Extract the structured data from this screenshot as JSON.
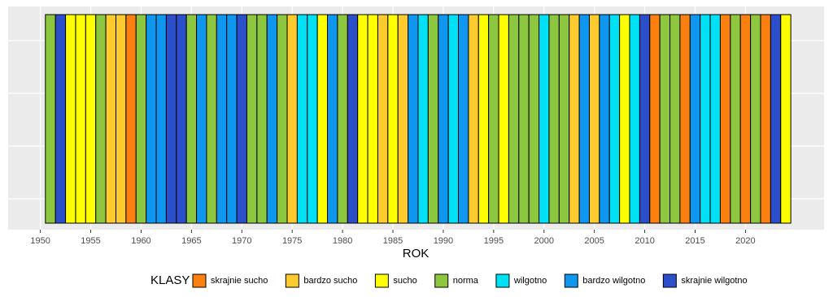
{
  "chart_data": {
    "type": "tile",
    "x_label": "ROK",
    "legend_title": "KLASY",
    "legend": [
      {
        "name": "skrajnie sucho",
        "color": "#fb8010"
      },
      {
        "name": "bardzo sucho",
        "color": "#fdcb2e"
      },
      {
        "name": "sucho",
        "color": "#ffff00"
      },
      {
        "name": "norma",
        "color": "#8dc63f"
      },
      {
        "name": "wilgotno",
        "color": "#00e1f5"
      },
      {
        "name": "bardzo wilgotno",
        "color": "#0f96ef"
      },
      {
        "name": "skrajnie wilgotno",
        "color": "#2b4fca"
      }
    ],
    "x": [
      1951,
      1952,
      1953,
      1954,
      1955,
      1956,
      1957,
      1958,
      1959,
      1960,
      1961,
      1962,
      1963,
      1964,
      1965,
      1966,
      1967,
      1968,
      1969,
      1970,
      1971,
      1972,
      1973,
      1974,
      1975,
      1976,
      1977,
      1978,
      1979,
      1980,
      1981,
      1982,
      1983,
      1984,
      1985,
      1986,
      1987,
      1988,
      1989,
      1990,
      1991,
      1992,
      1993,
      1994,
      1995,
      1996,
      1997,
      1998,
      1999,
      2000,
      2001,
      2002,
      2003,
      2004,
      2005,
      2006,
      2007,
      2008,
      2009,
      2010,
      2011,
      2012,
      2013,
      2014,
      2015,
      2016,
      2017,
      2018,
      2019,
      2020,
      2021,
      2022,
      2023,
      2024
    ],
    "classes": [
      "norma",
      "skrajnie wilgotno",
      "sucho",
      "sucho",
      "sucho",
      "norma",
      "bardzo sucho",
      "bardzo sucho",
      "skrajnie sucho",
      "norma",
      "bardzo wilgotno",
      "bardzo wilgotno",
      "skrajnie wilgotno",
      "skrajnie wilgotno",
      "norma",
      "bardzo wilgotno",
      "norma",
      "bardzo wilgotno",
      "bardzo wilgotno",
      "skrajnie wilgotno",
      "norma",
      "norma",
      "bardzo wilgotno",
      "norma",
      "bardzo sucho",
      "wilgotno",
      "wilgotno",
      "sucho",
      "bardzo wilgotno",
      "norma",
      "skrajnie wilgotno",
      "sucho",
      "sucho",
      "bardzo sucho",
      "sucho",
      "bardzo sucho",
      "bardzo wilgotno",
      "wilgotno",
      "norma",
      "bardzo wilgotno",
      "wilgotno",
      "bardzo wilgotno",
      "bardzo sucho",
      "sucho",
      "norma",
      "sucho",
      "norma",
      "norma",
      "norma",
      "wilgotno",
      "norma",
      "norma",
      "bardzo sucho",
      "bardzo wilgotno",
      "bardzo sucho",
      "bardzo wilgotno",
      "wilgotno",
      "sucho",
      "wilgotno",
      "skrajnie wilgotno",
      "skrajnie sucho",
      "norma",
      "norma",
      "skrajnie sucho",
      "bardzo wilgotno",
      "wilgotno",
      "wilgotno",
      "skrajnie sucho",
      "norma",
      "skrajnie sucho",
      "norma",
      "skrajnie sucho",
      "skrajnie wilgotno",
      "sucho"
    ],
    "xlim": [
      1946.8,
      2027.8
    ],
    "xticks": [
      1950,
      1955,
      1960,
      1965,
      1970,
      1975,
      1980,
      1985,
      1990,
      1995,
      2000,
      2005,
      2010,
      2015,
      2020
    ],
    "grid": true
  }
}
